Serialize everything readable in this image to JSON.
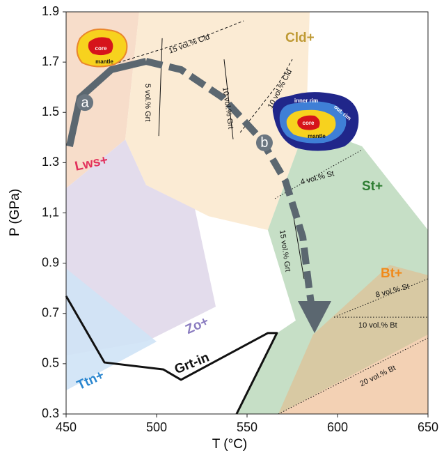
{
  "chart_data": {
    "type": "phase-diagram",
    "x_label": "T (°C)",
    "y_label": "P (GPa)",
    "xlim": [
      450,
      650
    ],
    "ylim": [
      0.3,
      1.9
    ],
    "xticks": [
      450,
      500,
      550,
      600,
      650
    ],
    "yticks": [
      0.3,
      0.5,
      0.7,
      0.9,
      {
        "value": 1.1,
        "label": "1,1"
      },
      1.3,
      1.5,
      1.7,
      1.9
    ],
    "fields": [
      {
        "label": "Lws+",
        "color": "#f6d9c4",
        "label_color": "#e2305c",
        "x": [
          450,
          490.4,
          482.7,
          450
        ],
        "y": [
          1.9,
          1.9,
          1.392,
          1.198
        ]
      },
      {
        "label": "Cld+",
        "color": "#fbe9cf",
        "label_color": "#bf9a35",
        "x": [
          490.4,
          584.6,
          582.7,
          561.5,
          528.8,
          494.2,
          482.7
        ],
        "y": [
          1.9,
          1.9,
          1.448,
          1.032,
          1.087,
          1.211,
          1.392
        ]
      },
      {
        "label": "St+",
        "color": "#c0dcc0",
        "label_color": "#2e7d32",
        "x": [
          582.7,
          613.5,
          650,
          650,
          544.2,
          565.4,
          576.9,
          561.5
        ],
        "y": [
          1.448,
          1.365,
          1.032,
          0.3,
          0.3,
          0.616,
          0.672,
          1.032
        ]
      },
      {
        "label": "Bt+",
        "color": "#d9c79e",
        "label_color": "#f08a1a",
        "x": [
          586.5,
          628.8,
          650,
          650,
          567.3
        ],
        "y": [
          0.616,
          0.893,
          0.852,
          0.3,
          0.3
        ]
      },
      {
        "color": "#f6d2b6",
        "x": [
          567.3,
          650,
          650
        ],
        "y": [
          0.3,
          0.616,
          0.3
        ]
      },
      {
        "label": "Zo+",
        "color": "#e0d8ea",
        "label_color": "#8a7cc0",
        "x": [
          450,
          482.7,
          494.2,
          521.2,
          532.7,
          494.2,
          450
        ],
        "y": [
          1.198,
          1.392,
          1.211,
          1.115,
          0.727,
          0.588,
          0.533
        ]
      },
      {
        "label": "Ttn+",
        "color": "#cfe3f6",
        "label_color": "#2a86cf",
        "x": [
          450,
          500,
          450
        ],
        "y": [
          0.879,
          0.588,
          0.394
        ]
      }
    ],
    "boundaries": [
      {
        "label": "Grt-in",
        "color": "#111111",
        "x": [
          450,
          471.2,
          503.8,
          513.5,
          561.5,
          566.5,
          544.2
        ],
        "y": [
          0.769,
          0.505,
          0.477,
          0.436,
          0.622,
          0.622,
          0.3
        ]
      }
    ],
    "isopleths": [
      {
        "label": "15 vol.% Cld",
        "style": "dashed",
        "x": [
          478.8,
          528.8,
          548.1
        ],
        "y": [
          1.698,
          1.809,
          1.864
        ]
      },
      {
        "label": "10 vol.% Cld",
        "style": "dashed",
        "x": [
          546.2,
          567.3,
          575
        ],
        "y": [
          1.42,
          1.614,
          1.711
        ]
      },
      {
        "label": "5 vol.% Grt",
        "style": "solid",
        "x": [
          503.1,
          501.2
        ],
        "y": [
          1.795,
          1.406
        ]
      },
      {
        "label": "10 vol.% Grt",
        "style": "solid",
        "x": [
          537.3,
          542.3
        ],
        "y": [
          1.711,
          1.393
        ]
      },
      {
        "label": "15 vol.% Grt",
        "style": "solid",
        "x": [
          575,
          581.5
        ],
        "y": [
          1.115,
          0.838
        ]
      },
      {
        "label": "4 vol.% St",
        "style": "dotted",
        "x": [
          565.4,
          613.5
        ],
        "y": [
          1.157,
          1.351
        ]
      },
      {
        "label": "8 vol.% St",
        "style": "dotted",
        "x": [
          598.1,
          650
        ],
        "y": [
          0.685,
          0.838
        ]
      },
      {
        "label": "10 vol.% Bt",
        "style": "dotted",
        "x": [
          598.1,
          650
        ],
        "y": [
          0.685,
          0.685
        ]
      },
      {
        "label": "20 vol.% Bt",
        "style": "dotted",
        "x": [
          567.3,
          650
        ],
        "y": [
          0.3,
          0.602
        ]
      }
    ],
    "path": [
      {
        "style": "solid",
        "color": "#5b6770",
        "x": [
          451.9,
          457.7,
          475,
          494.2
        ],
        "y": [
          1.365,
          1.559,
          1.67,
          1.703
        ]
      },
      {
        "style": "dashed",
        "color": "#5b6770",
        "x": [
          494.2,
          513.5,
          536.5,
          557.7,
          571.2,
          580.8,
          584.6,
          586.5
        ],
        "y": [
          1.703,
          1.67,
          1.559,
          1.393,
          1.227,
          1.004,
          0.782,
          0.685
        ]
      }
    ],
    "path_labels": [
      {
        "label": "a",
        "x": 460.4,
        "y": 1.539
      },
      {
        "label": "b",
        "x": 559.6,
        "y": 1.379
      }
    ],
    "insets": [
      {
        "labels": [
          "core",
          "mantle"
        ]
      },
      {
        "labels": [
          "inner rim",
          "out. rim",
          "core",
          "mantle"
        ]
      }
    ]
  }
}
